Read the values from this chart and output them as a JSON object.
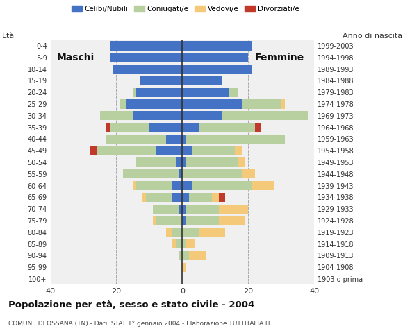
{
  "age_groups": [
    "100+",
    "95-99",
    "90-94",
    "85-89",
    "80-84",
    "75-79",
    "70-74",
    "65-69",
    "60-64",
    "55-59",
    "50-54",
    "45-49",
    "40-44",
    "35-39",
    "30-34",
    "25-29",
    "20-24",
    "15-19",
    "10-14",
    "5-9",
    "0-4"
  ],
  "birth_years": [
    "1903 o prima",
    "1904-1908",
    "1909-1913",
    "1914-1918",
    "1919-1923",
    "1924-1928",
    "1929-1933",
    "1934-1938",
    "1939-1943",
    "1944-1948",
    "1949-1953",
    "1954-1958",
    "1959-1963",
    "1964-1968",
    "1969-1973",
    "1974-1978",
    "1979-1983",
    "1984-1988",
    "1989-1993",
    "1994-1998",
    "1999-2003"
  ],
  "males": {
    "celibi": [
      0,
      0,
      0,
      0,
      0,
      0,
      1,
      3,
      3,
      1,
      2,
      8,
      5,
      10,
      15,
      17,
      14,
      13,
      21,
      22,
      22
    ],
    "coniugati": [
      0,
      0,
      1,
      2,
      3,
      8,
      8,
      8,
      11,
      17,
      12,
      18,
      18,
      12,
      10,
      2,
      1,
      0,
      0,
      0,
      0
    ],
    "vedovi": [
      0,
      0,
      0,
      1,
      2,
      1,
      0,
      1,
      1,
      0,
      0,
      0,
      0,
      0,
      0,
      0,
      0,
      0,
      0,
      0,
      0
    ],
    "divorziati": [
      0,
      0,
      0,
      0,
      0,
      0,
      0,
      0,
      0,
      0,
      0,
      2,
      0,
      1,
      0,
      0,
      0,
      0,
      0,
      0,
      0
    ]
  },
  "females": {
    "nubili": [
      0,
      0,
      0,
      0,
      0,
      1,
      1,
      2,
      3,
      0,
      1,
      3,
      1,
      5,
      12,
      18,
      14,
      12,
      21,
      20,
      21
    ],
    "coniugate": [
      0,
      0,
      2,
      1,
      5,
      10,
      10,
      7,
      18,
      18,
      16,
      13,
      30,
      17,
      26,
      12,
      3,
      0,
      0,
      0,
      0
    ],
    "vedove": [
      0,
      1,
      5,
      3,
      8,
      8,
      9,
      2,
      7,
      4,
      2,
      2,
      0,
      0,
      0,
      1,
      0,
      0,
      0,
      0,
      0
    ],
    "divorziate": [
      0,
      0,
      0,
      0,
      0,
      0,
      0,
      2,
      0,
      0,
      0,
      0,
      0,
      2,
      0,
      0,
      0,
      0,
      0,
      0,
      0
    ]
  },
  "colors": {
    "celibi": "#4472c4",
    "coniugati": "#b8cfa0",
    "vedovi": "#f5c97a",
    "divorziati": "#c0392b"
  },
  "title": "Popolazione per età, sesso e stato civile - 2004",
  "subtitle": "COMUNE DI OSSANA (TN) - Dati ISTAT 1° gennaio 2004 - Elaborazione TUTTITALIA.IT",
  "xlim": 40,
  "ylabel_left": "Età",
  "ylabel_right": "Anno di nascita",
  "legend_labels": [
    "Celibi/Nubili",
    "Coniugati/e",
    "Vedovi/e",
    "Divorziati/e"
  ],
  "maschi_label": "Maschi",
  "femmine_label": "Femmine",
  "bg_color": "#f0f0f0"
}
